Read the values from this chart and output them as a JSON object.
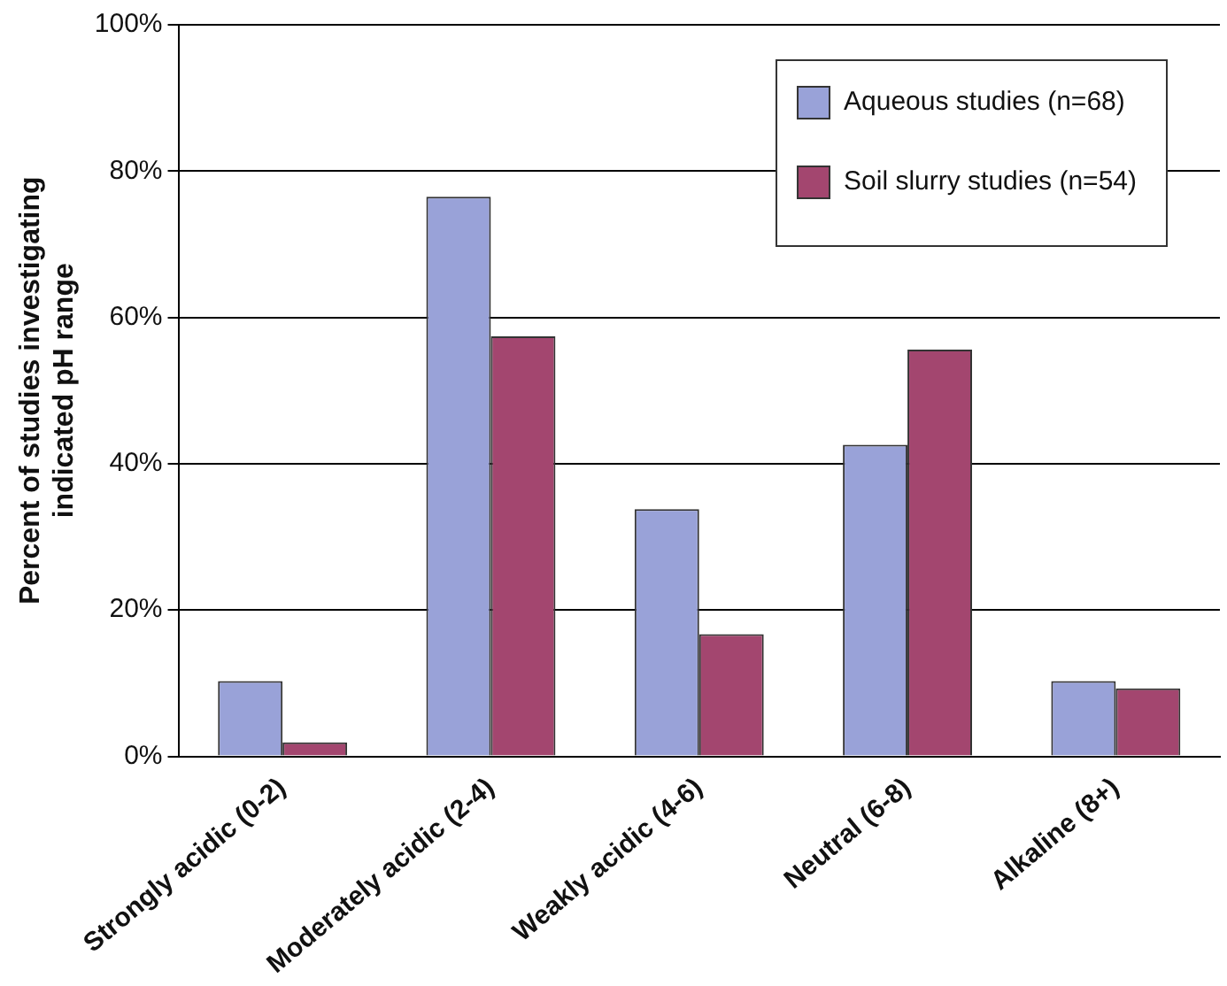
{
  "chart_data": {
    "type": "bar",
    "ylabel": "Percent of studies investigating\nindicated pH range",
    "categories": [
      "Strongly acidic (0-2)",
      "Moderately acidic (2-4)",
      "Weakly acidic (4-6)",
      "Neutral (6-8)",
      "Alkaline (8+)"
    ],
    "series": [
      {
        "name": "Aqueous studies (n=68)",
        "color": "#99a2d8",
        "values": [
          10.3,
          76.5,
          33.8,
          42.6,
          10.3
        ]
      },
      {
        "name": "Soil slurry studies (n=54)",
        "color": "#a3466f",
        "values": [
          1.9,
          57.4,
          16.7,
          55.6,
          9.3
        ]
      }
    ],
    "ylim": [
      0,
      100
    ],
    "yticks": [
      {
        "value": 0,
        "label": "0%"
      },
      {
        "value": 20,
        "label": "20%"
      },
      {
        "value": 40,
        "label": "40%"
      },
      {
        "value": 60,
        "label": "60%"
      },
      {
        "value": 80,
        "label": "80%"
      },
      {
        "value": 100,
        "label": "100%"
      }
    ],
    "grid": "y",
    "legend": "top right"
  }
}
